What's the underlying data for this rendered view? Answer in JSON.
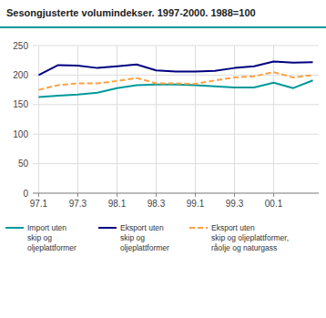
{
  "chart_data": {
    "type": "line",
    "title": "Sesongjusterte volumindekser. 1997-2000. 1988=100",
    "categories": [
      "97.1",
      null,
      "97.3",
      null,
      "98.1",
      null,
      "98.3",
      null,
      "99.1",
      null,
      "99.3",
      null,
      "00.1",
      null,
      null
    ],
    "series": [
      {
        "name": "Import uten\nskip og\noljeplattformer",
        "color": "#009999",
        "line_style": "solid",
        "values": [
          163,
          165,
          167,
          170,
          178,
          183,
          184,
          184,
          183,
          181,
          179,
          179,
          187,
          178,
          191
        ]
      },
      {
        "name": "Eksport uten\nskip og\noljeplattformer",
        "color": "#00007F",
        "line_style": "solid",
        "values": [
          200,
          217,
          216,
          212,
          215,
          218,
          208,
          206,
          206,
          207,
          212,
          215,
          223,
          221,
          222
        ]
      },
      {
        "name": "Eksport uten\nskip og oljeplattformer,\nråolje og naturgass",
        "color": "#FFA040",
        "line_style": "dashed",
        "values": [
          175,
          183,
          186,
          186,
          190,
          195,
          186,
          186,
          185,
          191,
          196,
          198,
          205,
          196,
          200
        ]
      }
    ],
    "ylim": [
      0,
      250
    ],
    "yticks": [
      0,
      50,
      100,
      150,
      200,
      250
    ],
    "grid": true,
    "legend": "bottom"
  }
}
